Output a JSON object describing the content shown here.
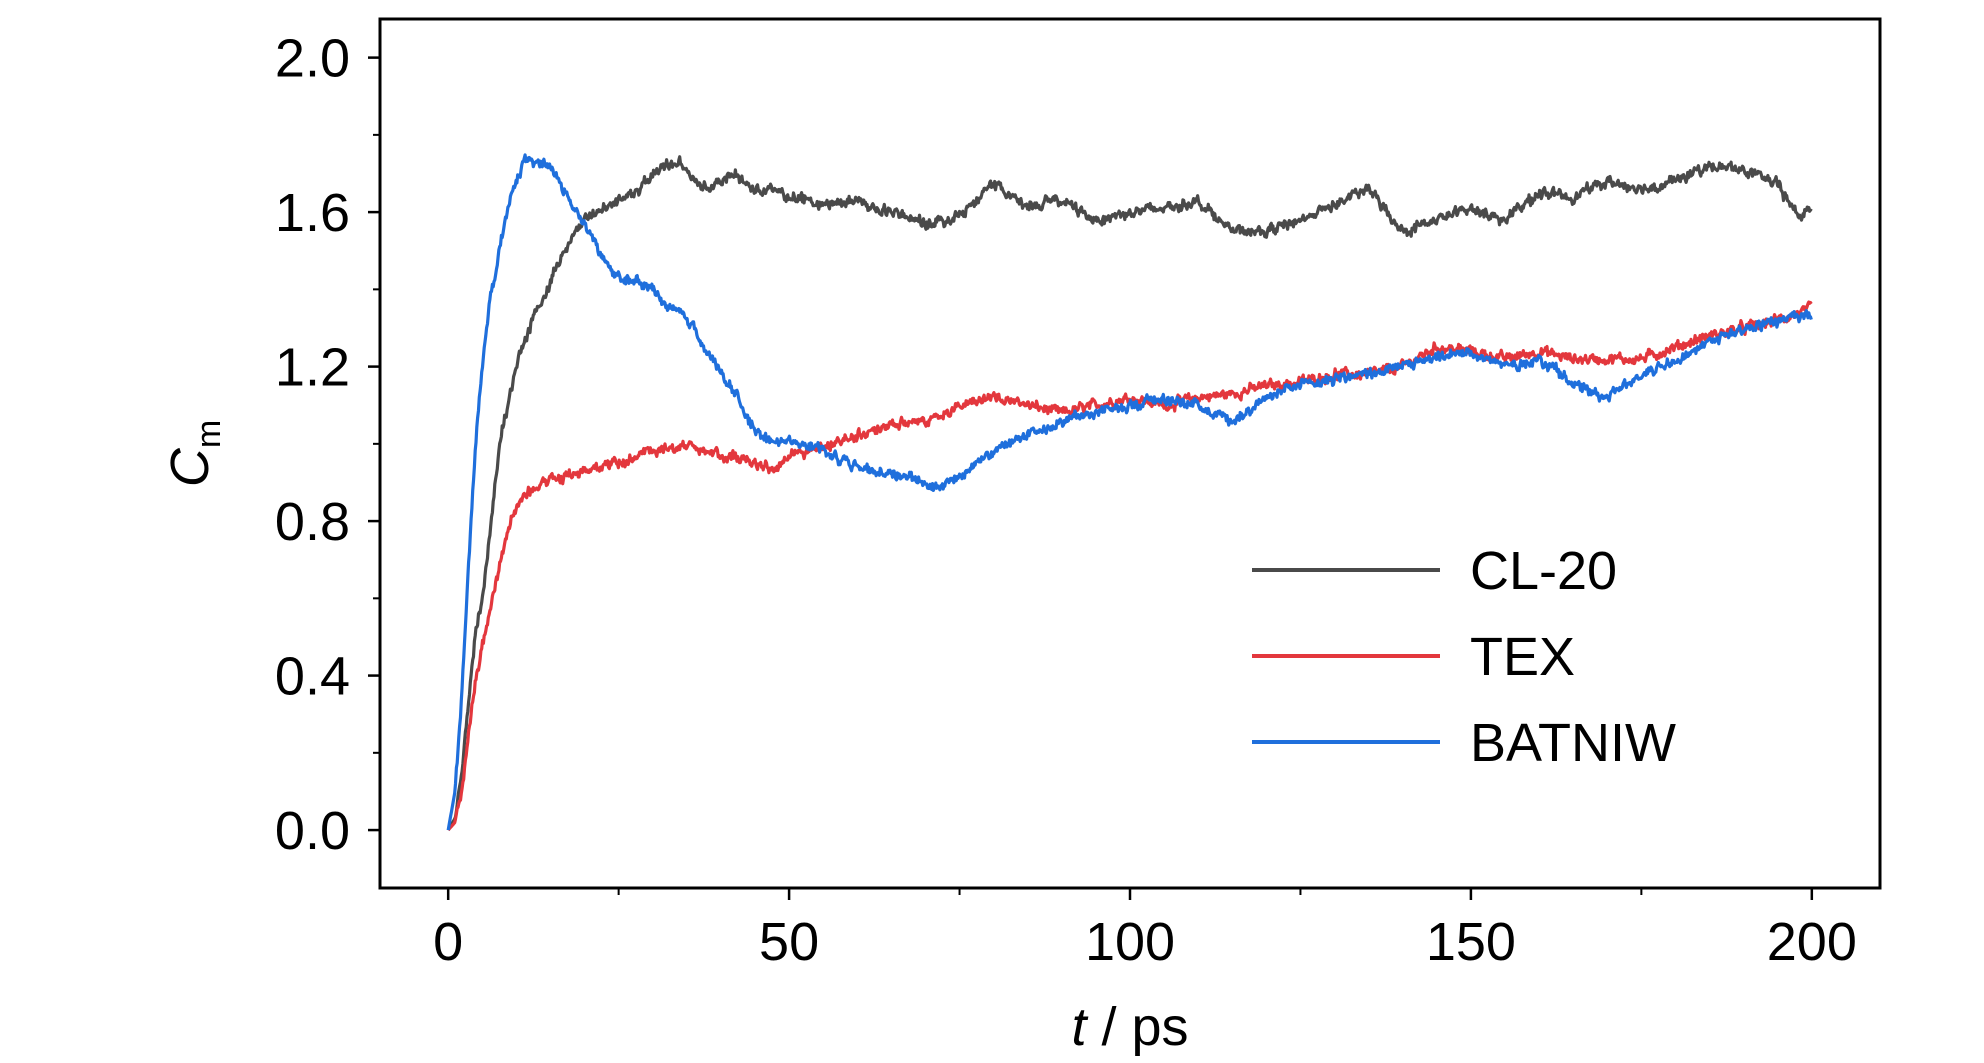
{
  "chart_data": {
    "type": "line",
    "title": "",
    "xlabel_italic": "t",
    "xlabel_rest": " / ps",
    "ylabel_main": "C",
    "ylabel_sub": "m",
    "xlim": [
      -10,
      210
    ],
    "ylim": [
      -0.15,
      2.1
    ],
    "xticks": [
      0,
      50,
      100,
      150,
      200
    ],
    "xtick_labels": [
      "0",
      "50",
      "100",
      "150",
      "200"
    ],
    "yticks": [
      0.0,
      0.4,
      0.8,
      1.2,
      1.6,
      2.0
    ],
    "ytick_labels": [
      "0.0",
      "0.4",
      "0.8",
      "1.2",
      "1.6",
      "2.0"
    ],
    "grid": false,
    "legend_position": "lower-right",
    "series": [
      {
        "name": "CL-20",
        "color": "#4a4a4a",
        "x": [
          0,
          1,
          2,
          3,
          4,
          5,
          6,
          7,
          8,
          9,
          10,
          11,
          12,
          13,
          14,
          15,
          16,
          17,
          18,
          19,
          20,
          22,
          24,
          26,
          28,
          30,
          32,
          34,
          36,
          38,
          40,
          42,
          44,
          46,
          48,
          50,
          55,
          60,
          65,
          70,
          75,
          80,
          85,
          90,
          95,
          100,
          105,
          110,
          115,
          120,
          125,
          130,
          135,
          140,
          145,
          150,
          155,
          160,
          165,
          170,
          175,
          180,
          185,
          190,
          195,
          198,
          200
        ],
        "y": [
          0.0,
          0.03,
          0.15,
          0.33,
          0.52,
          0.6,
          0.75,
          0.92,
          1.05,
          1.12,
          1.2,
          1.25,
          1.3,
          1.35,
          1.38,
          1.42,
          1.46,
          1.5,
          1.53,
          1.56,
          1.58,
          1.6,
          1.62,
          1.64,
          1.66,
          1.7,
          1.72,
          1.73,
          1.68,
          1.66,
          1.68,
          1.7,
          1.67,
          1.66,
          1.65,
          1.64,
          1.62,
          1.63,
          1.6,
          1.57,
          1.59,
          1.67,
          1.62,
          1.63,
          1.58,
          1.6,
          1.61,
          1.63,
          1.55,
          1.55,
          1.58,
          1.62,
          1.66,
          1.55,
          1.58,
          1.61,
          1.58,
          1.65,
          1.64,
          1.68,
          1.66,
          1.68,
          1.72,
          1.71,
          1.67,
          1.59,
          1.61
        ]
      },
      {
        "name": "TEX",
        "color": "#e3373d",
        "x": [
          0,
          1,
          2,
          3,
          4,
          5,
          6,
          7,
          8,
          9,
          10,
          11,
          12,
          14,
          16,
          18,
          20,
          22,
          25,
          30,
          35,
          40,
          45,
          48,
          50,
          55,
          60,
          65,
          70,
          75,
          80,
          85,
          90,
          95,
          100,
          105,
          110,
          115,
          120,
          125,
          130,
          135,
          140,
          145,
          150,
          155,
          160,
          165,
          170,
          175,
          180,
          185,
          190,
          195,
          200
        ],
        "y": [
          0.0,
          0.02,
          0.1,
          0.25,
          0.38,
          0.48,
          0.56,
          0.64,
          0.72,
          0.79,
          0.83,
          0.86,
          0.88,
          0.9,
          0.91,
          0.92,
          0.93,
          0.94,
          0.95,
          0.98,
          1.0,
          0.97,
          0.95,
          0.93,
          0.97,
          0.99,
          1.02,
          1.05,
          1.06,
          1.1,
          1.12,
          1.1,
          1.08,
          1.1,
          1.12,
          1.1,
          1.12,
          1.13,
          1.15,
          1.16,
          1.18,
          1.18,
          1.2,
          1.25,
          1.24,
          1.22,
          1.24,
          1.22,
          1.22,
          1.22,
          1.25,
          1.28,
          1.3,
          1.32,
          1.35
        ]
      },
      {
        "name": "BATNIW",
        "color": "#1f6fdc",
        "x": [
          0,
          1,
          2,
          3,
          4,
          5,
          6,
          7,
          8,
          9,
          10,
          11,
          12,
          13,
          14,
          15,
          16,
          18,
          20,
          22,
          24,
          26,
          28,
          30,
          32,
          34,
          36,
          38,
          40,
          42,
          44,
          46,
          48,
          50,
          55,
          60,
          65,
          70,
          72,
          75,
          80,
          85,
          90,
          95,
          100,
          105,
          110,
          115,
          120,
          125,
          130,
          135,
          140,
          145,
          150,
          155,
          160,
          165,
          170,
          175,
          180,
          185,
          190,
          195,
          200
        ],
        "y": [
          0.0,
          0.1,
          0.35,
          0.7,
          1.0,
          1.2,
          1.35,
          1.45,
          1.55,
          1.62,
          1.68,
          1.72,
          1.74,
          1.72,
          1.73,
          1.72,
          1.7,
          1.62,
          1.57,
          1.5,
          1.45,
          1.42,
          1.42,
          1.4,
          1.36,
          1.34,
          1.3,
          1.24,
          1.18,
          1.14,
          1.06,
          1.02,
          1.0,
          1.02,
          0.98,
          0.94,
          0.92,
          0.9,
          0.89,
          0.92,
          0.98,
          1.02,
          1.06,
          1.08,
          1.1,
          1.12,
          1.1,
          1.06,
          1.12,
          1.15,
          1.17,
          1.18,
          1.2,
          1.22,
          1.24,
          1.2,
          1.22,
          1.16,
          1.12,
          1.18,
          1.22,
          1.26,
          1.3,
          1.32,
          1.33
        ]
      }
    ]
  }
}
